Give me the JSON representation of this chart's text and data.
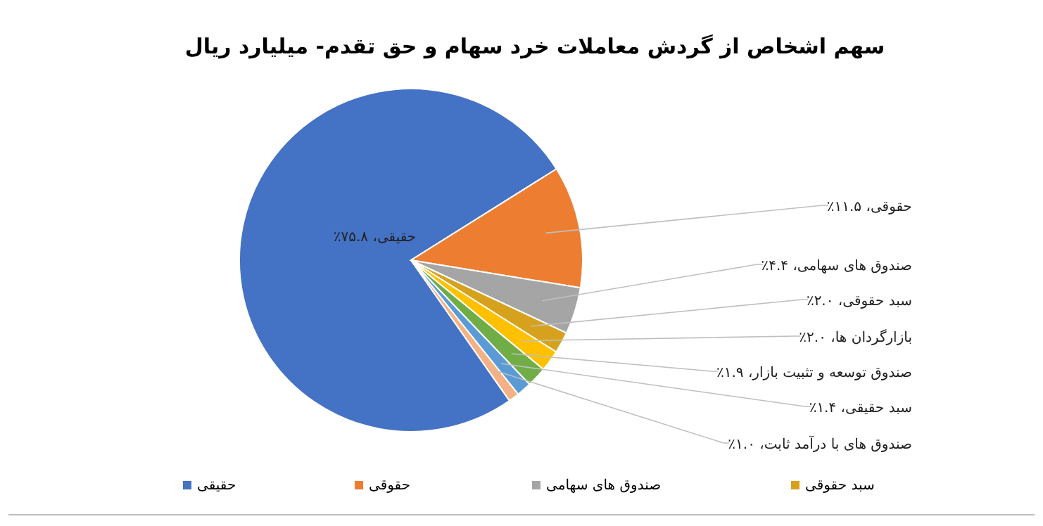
{
  "chart_data": {
    "type": "pie",
    "title": "سهم اشخاص از گردش معاملات خرد سهام و حق تقدم- میلیارد ریال",
    "categories": [
      "حقیقی",
      "حقوقی",
      "صندوق های سهامی",
      "سبد حقوقی",
      "بازارگردان ها",
      "صندوق توسعه و تثبیت بازار",
      "سبد حقیقی",
      "صندوق های با درآمد ثابت"
    ],
    "values": [
      75.8,
      11.5,
      4.4,
      2.0,
      2.0,
      1.9,
      1.4,
      1.0
    ],
    "colors": [
      "#4472c4",
      "#ed7d31",
      "#a5a5a5",
      "#d6a21e",
      "#ffc000",
      "#70ad47",
      "#5b9bd5",
      "#f4b183"
    ],
    "value_labels": [
      "، ۷۵.۸٪",
      "، ۱۱.۵٪",
      "، ۴.۴٪",
      "، ۲.۰٪",
      "، ۲.۰٪",
      "، ۱.۹٪",
      "، ۱.۴٪",
      "، ۱.۰٪"
    ],
    "legend": "bottom"
  }
}
